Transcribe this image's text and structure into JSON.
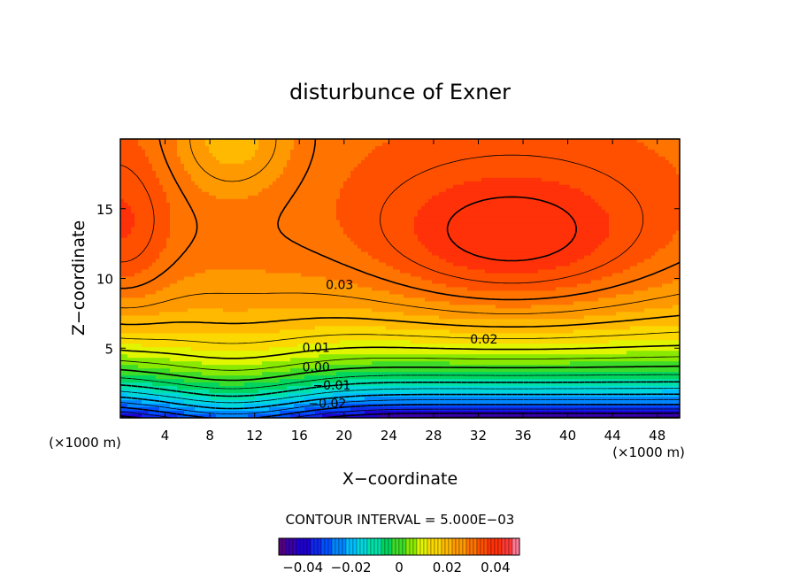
{
  "chart_data": {
    "type": "contour",
    "title": "disturbunce of Exner",
    "xlabel": "X−coordinate",
    "ylabel": "Z−coordinate",
    "x_unit": "(×1000 m)",
    "z_unit": "(×1000 m)",
    "xlim": [
      0,
      50
    ],
    "ylim": [
      0,
      20
    ],
    "x_ticks": [
      4,
      8,
      12,
      16,
      20,
      24,
      28,
      32,
      36,
      40,
      44,
      48
    ],
    "y_ticks": [
      5,
      10,
      15
    ],
    "contour_interval_text": "CONTOUR INTERVAL = 5.000E−03",
    "contour_labels": [
      {
        "text": "0.03",
        "x": 19.6,
        "z": 9.5
      },
      {
        "text": "0.02",
        "x": 32.5,
        "z": 5.6
      },
      {
        "text": "0.01",
        "x": 17.5,
        "z": 5.0
      },
      {
        "text": "0.00",
        "x": 17.5,
        "z": 3.6
      },
      {
        "text": "−0.01",
        "x": 18.9,
        "z": 2.3
      },
      {
        "text": "−0.02",
        "x": 18.5,
        "z": 1.0
      }
    ],
    "field_range": [
      -0.05,
      0.05
    ],
    "colorbar": {
      "ticks": [
        -0.04,
        -0.02,
        0,
        0.02,
        0.04
      ],
      "tick_labels": [
        "−0.04",
        "−0.02",
        "0",
        "0.02",
        "0.04"
      ]
    }
  }
}
